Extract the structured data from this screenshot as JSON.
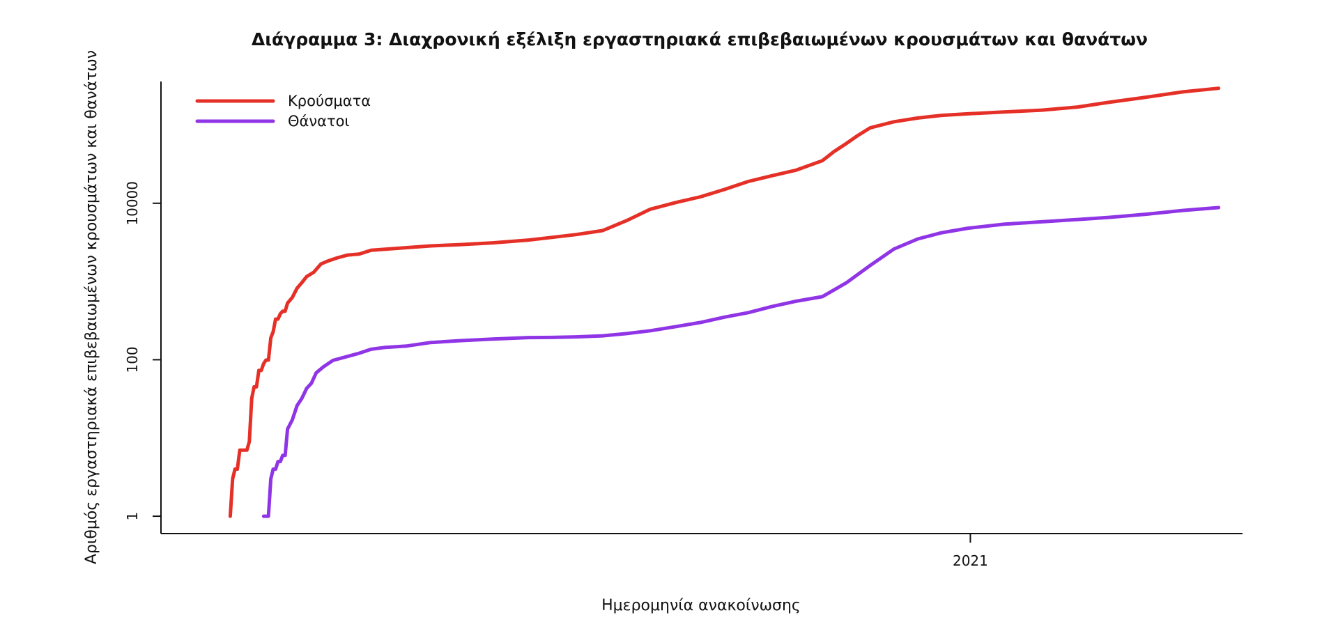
{
  "chart_data": {
    "type": "line",
    "title": "Διάγραμμα 3: Διαχρονική εξέλιξη εργαστηριακά επιβεβαιωμένων κρουσμάτων και θανάτων",
    "xlabel": "Ημερομηνία ανακοίνωσης",
    "ylabel": "Αριθμός εργαστηριακά επιβεβαιωμένων κρουσμάτων και θανάτων",
    "y_scale": "log10",
    "ylim": [
      0.6,
      360000
    ],
    "xlim": [
      "2020-01-28",
      "2021-04-25"
    ],
    "x_ticks": [
      {
        "date": "2021-01-01",
        "label": "2021"
      }
    ],
    "y_ticks": [
      {
        "value": 1,
        "label": "1"
      },
      {
        "value": 100,
        "label": "100"
      },
      {
        "value": 10000,
        "label": "10000"
      }
    ],
    "legend": {
      "position": "top-left"
    },
    "series": [
      {
        "name": "Κρούσματα",
        "color": "#e53027",
        "points": [
          [
            "2020-02-26",
            1
          ],
          [
            "2020-02-27",
            3
          ],
          [
            "2020-02-28",
            4
          ],
          [
            "2020-02-29",
            4
          ],
          [
            "2020-03-01",
            7
          ],
          [
            "2020-03-02",
            7
          ],
          [
            "2020-03-04",
            7
          ],
          [
            "2020-03-05",
            9
          ],
          [
            "2020-03-06",
            32
          ],
          [
            "2020-03-07",
            45
          ],
          [
            "2020-03-08",
            45
          ],
          [
            "2020-03-09",
            73
          ],
          [
            "2020-03-10",
            73
          ],
          [
            "2020-03-11",
            89
          ],
          [
            "2020-03-12",
            99
          ],
          [
            "2020-03-13",
            99
          ],
          [
            "2020-03-14",
            190
          ],
          [
            "2020-03-15",
            228
          ],
          [
            "2020-03-16",
            331
          ],
          [
            "2020-03-17",
            331
          ],
          [
            "2020-03-18",
            387
          ],
          [
            "2020-03-19",
            418
          ],
          [
            "2020-03-20",
            418
          ],
          [
            "2020-03-21",
            530
          ],
          [
            "2020-03-23",
            624
          ],
          [
            "2020-03-25",
            821
          ],
          [
            "2020-03-27",
            966
          ],
          [
            "2020-03-29",
            1156
          ],
          [
            "2020-04-01",
            1314
          ],
          [
            "2020-04-04",
            1673
          ],
          [
            "2020-04-07",
            1832
          ],
          [
            "2020-04-11",
            2011
          ],
          [
            "2020-04-15",
            2170
          ],
          [
            "2020-04-20",
            2245
          ],
          [
            "2020-04-25",
            2506
          ],
          [
            "2020-05-01",
            2591
          ],
          [
            "2020-05-10",
            2710
          ],
          [
            "2020-05-20",
            2853
          ],
          [
            "2020-06-01",
            2952
          ],
          [
            "2020-06-15",
            3121
          ],
          [
            "2020-06-30",
            3390
          ],
          [
            "2020-07-10",
            3672
          ],
          [
            "2020-07-20",
            3983
          ],
          [
            "2020-07-31",
            4477
          ],
          [
            "2020-08-10",
            6000
          ],
          [
            "2020-08-20",
            8400
          ],
          [
            "2020-08-31",
            10300
          ],
          [
            "2020-09-10",
            12100
          ],
          [
            "2020-09-20",
            15000
          ],
          [
            "2020-09-30",
            19000
          ],
          [
            "2020-10-10",
            22500
          ],
          [
            "2020-10-20",
            26500
          ],
          [
            "2020-10-31",
            35000
          ],
          [
            "2020-11-05",
            46000
          ],
          [
            "2020-11-10",
            58000
          ],
          [
            "2020-11-15",
            74000
          ],
          [
            "2020-11-20",
            92000
          ],
          [
            "2020-11-30",
            110000
          ],
          [
            "2020-12-10",
            123000
          ],
          [
            "2020-12-20",
            133000
          ],
          [
            "2020-12-31",
            139000
          ],
          [
            "2021-01-15",
            147000
          ],
          [
            "2021-01-31",
            155000
          ],
          [
            "2021-02-15",
            170000
          ],
          [
            "2021-02-28",
            195000
          ],
          [
            "2021-03-15",
            225000
          ],
          [
            "2021-03-31",
            265000
          ],
          [
            "2021-04-15",
            295000
          ]
        ]
      },
      {
        "name": "Θάνατοι",
        "color": "#9035e6",
        "points": [
          [
            "2020-03-11",
            1
          ],
          [
            "2020-03-13",
            1
          ],
          [
            "2020-03-14",
            3
          ],
          [
            "2020-03-15",
            4
          ],
          [
            "2020-03-16",
            4
          ],
          [
            "2020-03-17",
            5
          ],
          [
            "2020-03-18",
            5
          ],
          [
            "2020-03-19",
            6
          ],
          [
            "2020-03-20",
            6
          ],
          [
            "2020-03-21",
            13
          ],
          [
            "2020-03-23",
            17
          ],
          [
            "2020-03-25",
            26
          ],
          [
            "2020-03-27",
            32
          ],
          [
            "2020-03-29",
            43
          ],
          [
            "2020-03-31",
            50
          ],
          [
            "2020-04-02",
            68
          ],
          [
            "2020-04-05",
            81
          ],
          [
            "2020-04-09",
            98
          ],
          [
            "2020-04-15",
            110
          ],
          [
            "2020-04-20",
            121
          ],
          [
            "2020-04-25",
            136
          ],
          [
            "2020-05-01",
            144
          ],
          [
            "2020-05-10",
            150
          ],
          [
            "2020-05-20",
            166
          ],
          [
            "2020-06-01",
            175
          ],
          [
            "2020-06-15",
            184
          ],
          [
            "2020-06-30",
            192
          ],
          [
            "2020-07-10",
            193
          ],
          [
            "2020-07-20",
            196
          ],
          [
            "2020-07-31",
            202
          ],
          [
            "2020-08-10",
            216
          ],
          [
            "2020-08-20",
            235
          ],
          [
            "2020-08-31",
            266
          ],
          [
            "2020-09-10",
            300
          ],
          [
            "2020-09-20",
            350
          ],
          [
            "2020-09-30",
            400
          ],
          [
            "2020-10-10",
            480
          ],
          [
            "2020-10-20",
            560
          ],
          [
            "2020-10-31",
            640
          ],
          [
            "2020-11-10",
            960
          ],
          [
            "2020-11-20",
            1600
          ],
          [
            "2020-11-30",
            2600
          ],
          [
            "2020-12-10",
            3500
          ],
          [
            "2020-12-20",
            4200
          ],
          [
            "2020-12-31",
            4800
          ],
          [
            "2021-01-15",
            5400
          ],
          [
            "2021-01-31",
            5800
          ],
          [
            "2021-02-15",
            6200
          ],
          [
            "2021-02-28",
            6600
          ],
          [
            "2021-03-15",
            7200
          ],
          [
            "2021-03-31",
            8100
          ],
          [
            "2021-04-15",
            8800
          ]
        ]
      }
    ]
  }
}
